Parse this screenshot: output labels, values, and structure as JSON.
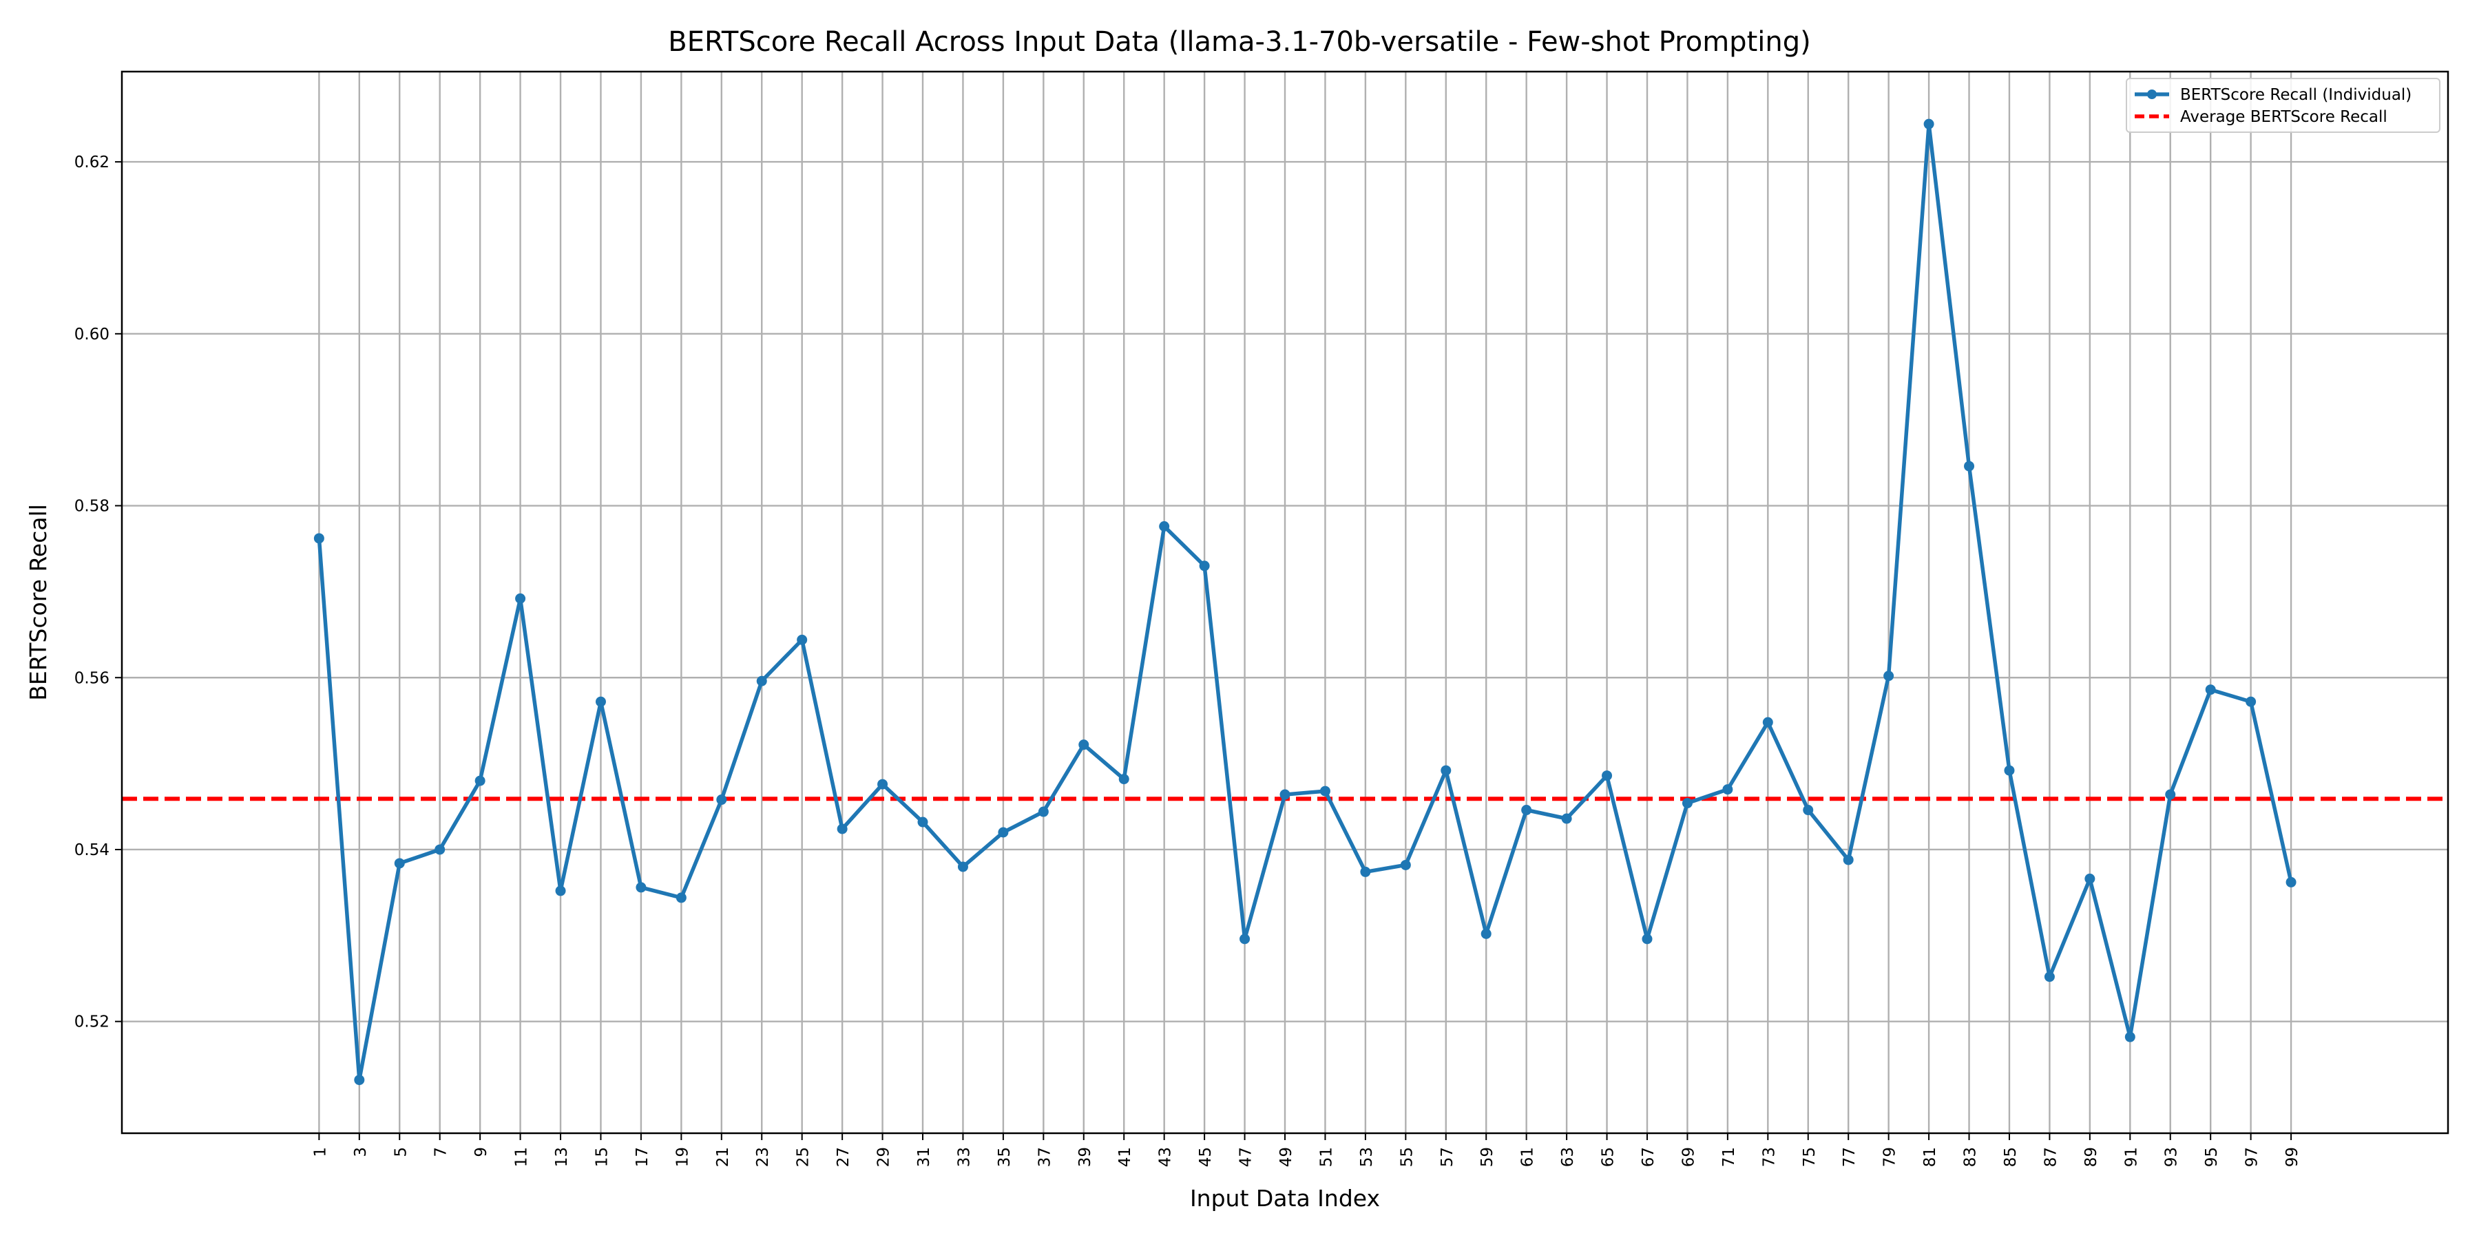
{
  "chart_data": {
    "type": "line",
    "title": "BERTScore Recall Across Input Data (llama-3.1-70b-versatile - Few-shot Prompting)",
    "xlabel": "Input Data Index",
    "ylabel": "BERTScore Recall",
    "x": [
      1,
      3,
      5,
      7,
      9,
      11,
      13,
      15,
      17,
      19,
      21,
      23,
      25,
      27,
      29,
      31,
      33,
      35,
      37,
      39,
      41,
      43,
      45,
      47,
      49,
      51,
      53,
      55,
      57,
      59,
      61,
      63,
      65,
      67,
      69,
      71,
      73,
      75,
      77,
      79,
      81,
      83,
      85,
      87,
      89,
      91,
      93,
      95,
      97,
      99
    ],
    "xticks": [
      "1",
      "3",
      "5",
      "7",
      "9",
      "11",
      "13",
      "15",
      "17",
      "19",
      "21",
      "23",
      "25",
      "27",
      "29",
      "31",
      "33",
      "35",
      "37",
      "39",
      "41",
      "43",
      "45",
      "47",
      "49",
      "51",
      "53",
      "55",
      "57",
      "59",
      "61",
      "63",
      "65",
      "67",
      "69",
      "71",
      "73",
      "75",
      "77",
      "79",
      "81",
      "83",
      "85",
      "87",
      "89",
      "91",
      "93",
      "95",
      "97",
      "99"
    ],
    "yticks": [
      "0.52",
      "0.54",
      "0.56",
      "0.58",
      "0.60",
      "0.62"
    ],
    "ylim": [
      0.507,
      0.6305
    ],
    "xlim": [
      -8.8,
      106.8
    ],
    "grid": true,
    "legend_position": "top-right",
    "series": [
      {
        "name": "BERTScore Recall (Individual)",
        "color": "#1f77b4",
        "style": "line-markers",
        "values": [
          0.5762,
          0.5132,
          0.5384,
          0.54,
          0.548,
          0.5692,
          0.5352,
          0.5572,
          0.5356,
          0.5344,
          0.5458,
          0.5596,
          0.5644,
          0.5424,
          0.5476,
          0.5432,
          0.538,
          0.542,
          0.5444,
          0.5522,
          0.5482,
          0.5776,
          0.573,
          0.5296,
          0.5464,
          0.5468,
          0.5374,
          0.5382,
          0.5492,
          0.5302,
          0.5446,
          0.5436,
          0.5486,
          0.5296,
          0.5454,
          0.547,
          0.5548,
          0.5446,
          0.5388,
          0.5602,
          0.6244,
          0.5846,
          0.5492,
          0.5252,
          0.5366,
          0.5182,
          0.5464,
          0.5586,
          0.5572,
          0.5362
        ]
      },
      {
        "name": "Average BERTScore Recall",
        "color": "#ff0000",
        "style": "dashed-hline",
        "value": 0.5459
      }
    ]
  }
}
